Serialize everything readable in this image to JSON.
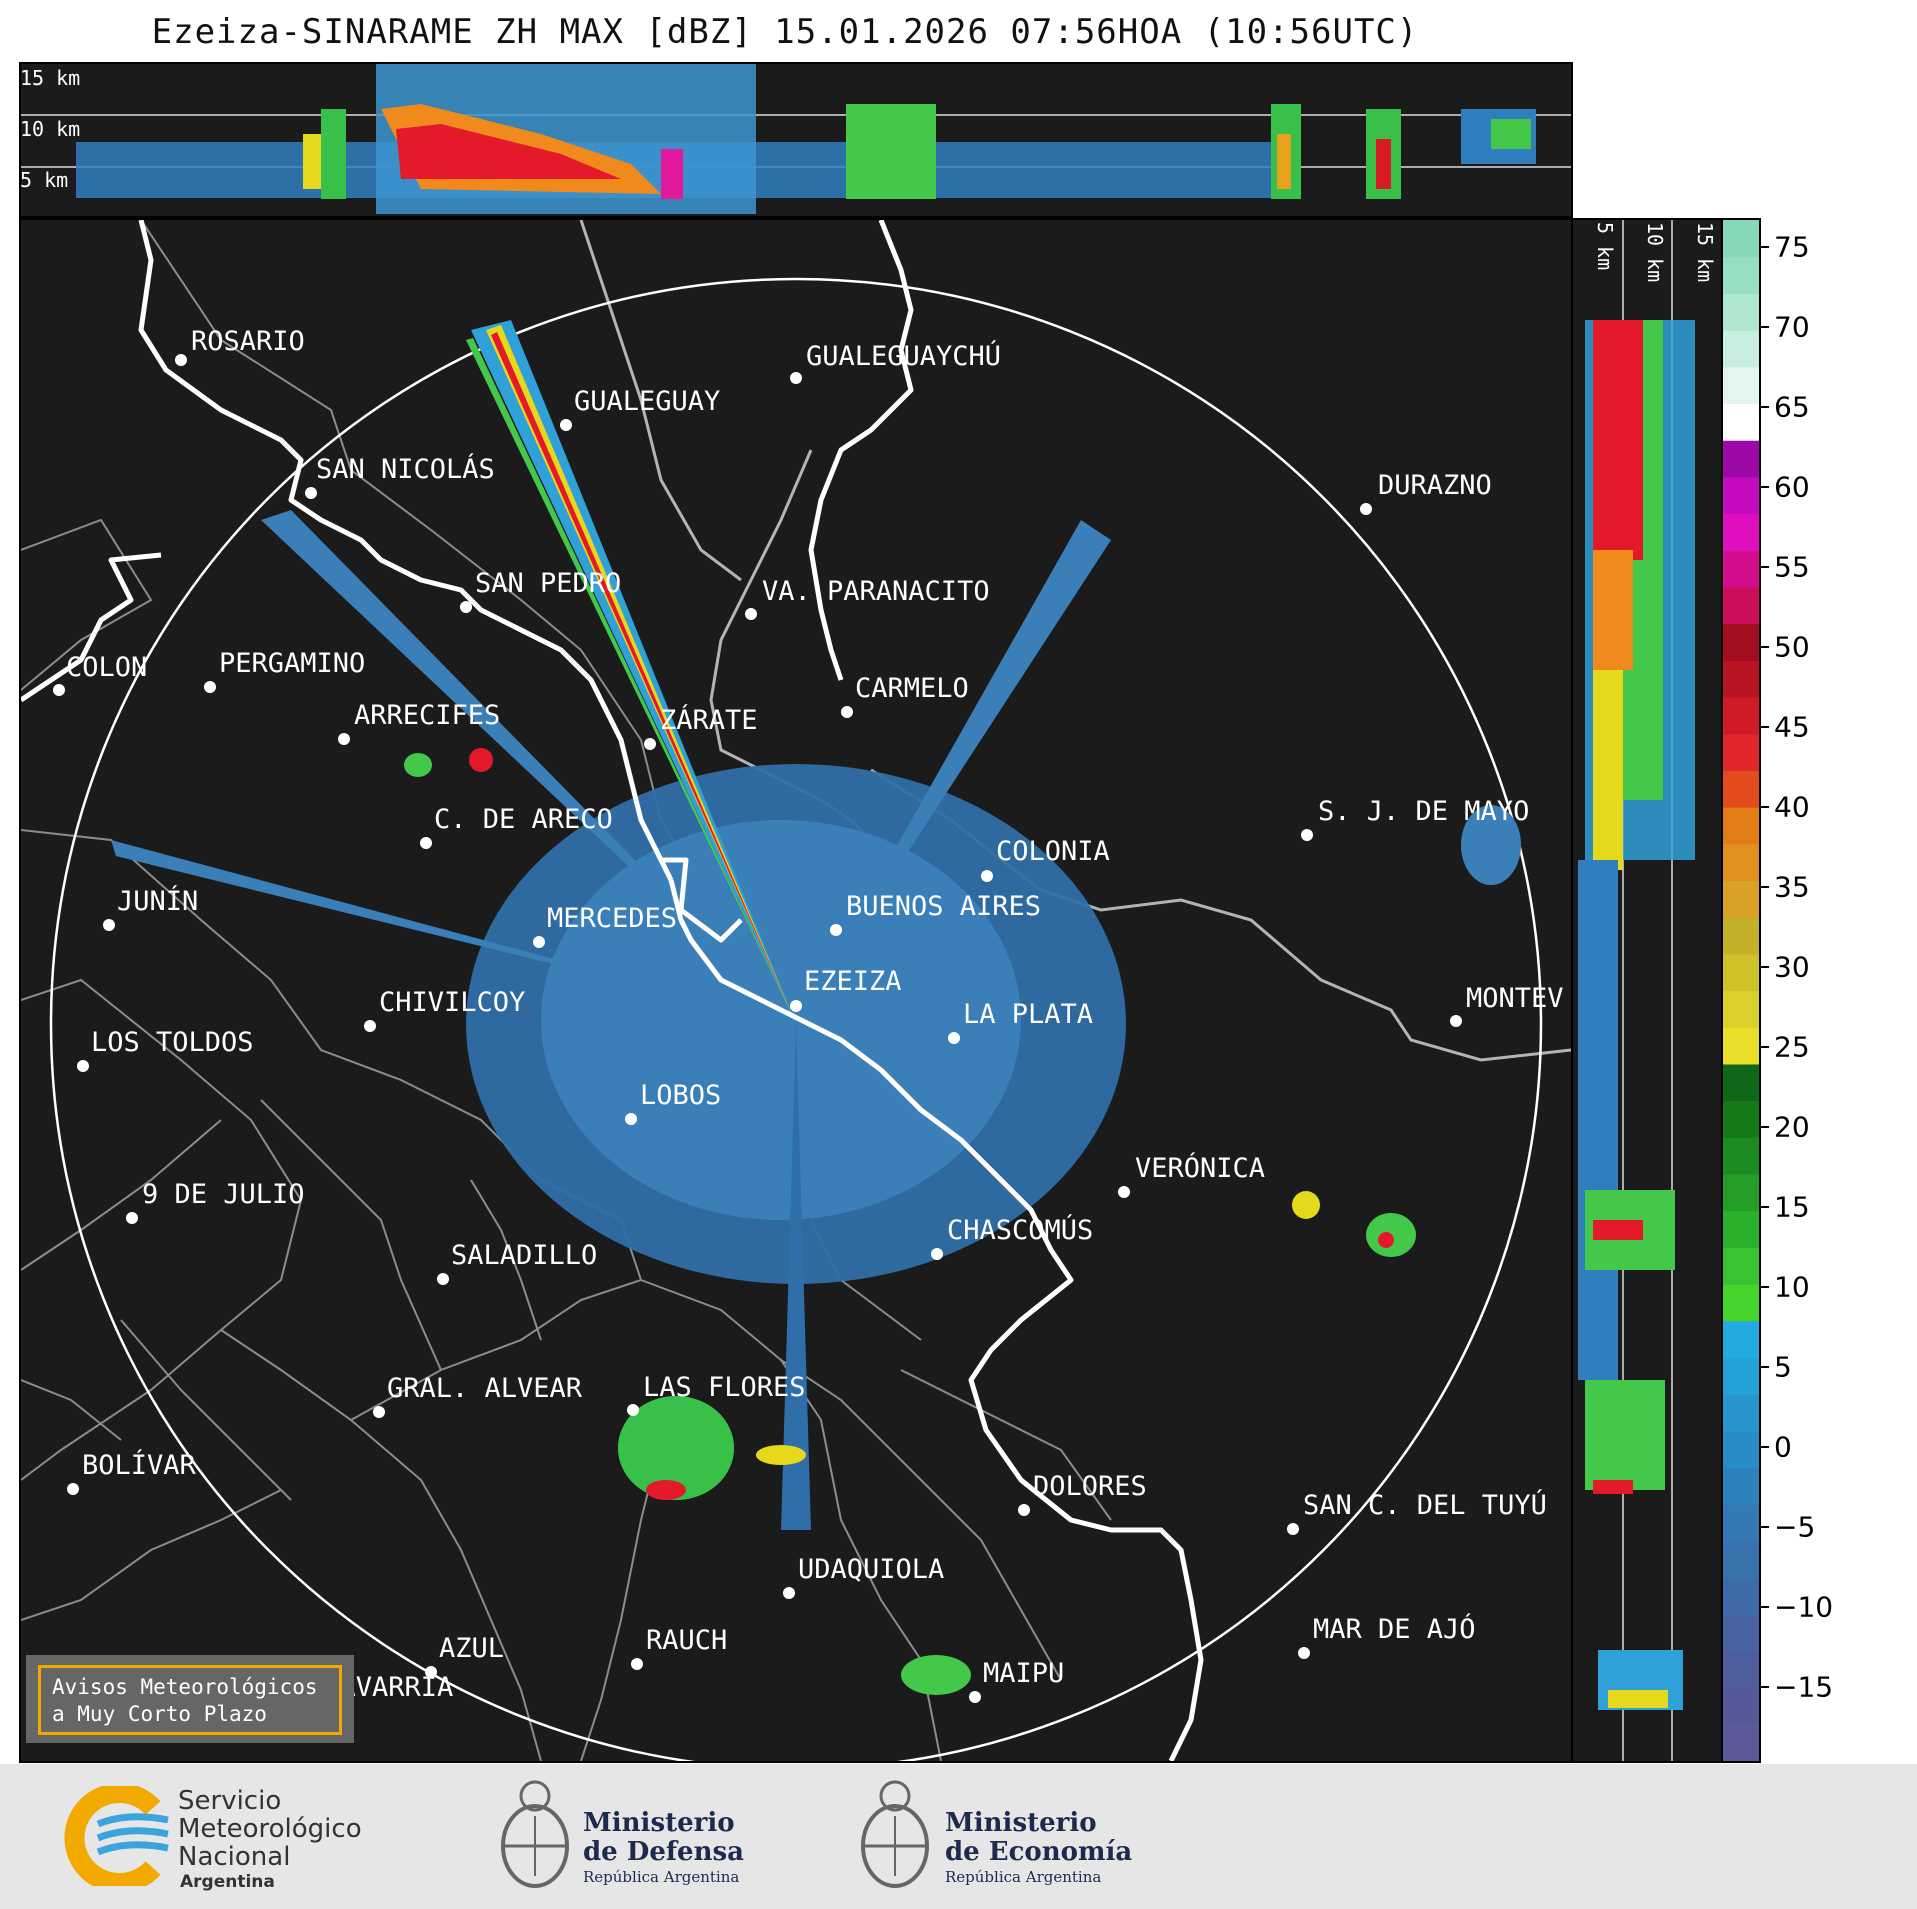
{
  "title": "Ezeiza-SINARAME ZH MAX [dBZ] 15.01.2026 07:56HOA (10:56UTC)",
  "height_labels": {
    "h15": "15 km",
    "h10": "10 km",
    "h5": "5 km"
  },
  "side_labels": {
    "h5": "5 km",
    "h10": "10 km",
    "h15": "15 km"
  },
  "colorbar": {
    "ticks": [
      "75",
      "70",
      "65",
      "60",
      "55",
      "50",
      "45",
      "40",
      "35",
      "30",
      "25",
      "20",
      "15",
      "10",
      "5",
      "0",
      "−5",
      "−10",
      "−15"
    ]
  },
  "cities": [
    {
      "name": "ROSARIO"
    },
    {
      "name": "GUALEGUAYCHÚ"
    },
    {
      "name": "GUALEGUAY"
    },
    {
      "name": "SAN NICOLÁS"
    },
    {
      "name": "DURAZNO"
    },
    {
      "name": "SAN PEDRO"
    },
    {
      "name": "VA. PARANACITO"
    },
    {
      "name": "COLON"
    },
    {
      "name": "PERGAMINO"
    },
    {
      "name": "CARMELO"
    },
    {
      "name": "ARRECIFES"
    },
    {
      "name": "ZÁRATE"
    },
    {
      "name": "S. J. DE MAYO"
    },
    {
      "name": "C. DE ARECO"
    },
    {
      "name": "COLONIA"
    },
    {
      "name": "JUNÍN"
    },
    {
      "name": "MERCEDES"
    },
    {
      "name": "BUENOS AIRES"
    },
    {
      "name": "EZEIZA"
    },
    {
      "name": "MONTEV"
    },
    {
      "name": "CHIVILCOY"
    },
    {
      "name": "LA PLATA"
    },
    {
      "name": "LOS TOLDOS"
    },
    {
      "name": "LOBOS"
    },
    {
      "name": "VERÓNICA"
    },
    {
      "name": "9 DE JULIO"
    },
    {
      "name": "CHASCOMÚS"
    },
    {
      "name": "SALADILLO"
    },
    {
      "name": "GRAL. ALVEAR"
    },
    {
      "name": "LAS FLORES"
    },
    {
      "name": "BOLÍVAR"
    },
    {
      "name": "DOLORES"
    },
    {
      "name": "SAN C. DEL TUYÚ"
    },
    {
      "name": "UDAQUIOLA"
    },
    {
      "name": "MAR DE AJÓ"
    },
    {
      "name": "AZUL"
    },
    {
      "name": "RAUCH"
    },
    {
      "name": "MAIPU"
    },
    {
      "name": "OLAVARRÍA"
    }
  ],
  "warning_box": {
    "line1": "Avisos Meteorológicos",
    "line2": "a Muy Corto Plazo"
  },
  "logos": {
    "smn": {
      "line1": "Servicio",
      "line2": "Meteorológico",
      "line3": "Nacional",
      "line4": "Argentina"
    },
    "defensa": {
      "line1": "Ministerio",
      "line2": "de Defensa",
      "line3": "República Argentina"
    },
    "economia": {
      "line1": "Ministerio",
      "line2": "de Economía",
      "line3": "República Argentina"
    }
  }
}
